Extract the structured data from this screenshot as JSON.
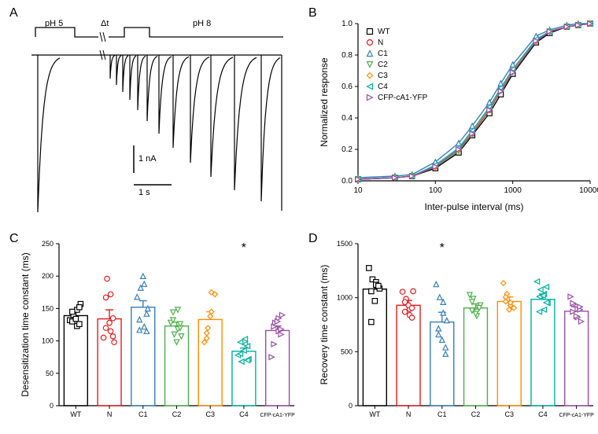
{
  "panelA": {
    "label": "A",
    "pH5_label": "pH 5",
    "dt_label": "Δt",
    "pH8_label": "pH 8",
    "scale_y_label": "1 nA",
    "scale_x_label": "1 s",
    "traces_envelope_x": [
      20,
      25,
      25,
      30,
      40,
      55,
      75,
      95,
      115,
      135,
      155,
      180,
      210,
      245,
      285,
      330
    ],
    "traces_peak_heights": [
      200,
      30,
      40,
      50,
      62,
      75,
      90,
      105,
      120,
      135,
      150,
      162,
      172,
      180,
      188,
      198
    ],
    "line_color": "#000000",
    "background": "#ffffff"
  },
  "panelB": {
    "label": "B",
    "xlabel": "Inter-pulse interval (ms)",
    "ylabel": "Normalized response",
    "xlim": [
      10,
      10000
    ],
    "ylim": [
      0,
      1.0
    ],
    "xticks": [
      10,
      100,
      1000,
      10000
    ],
    "yticks": [
      0.0,
      0.2,
      0.4,
      0.6,
      0.8,
      1.0
    ],
    "x_points": [
      10,
      30,
      50,
      100,
      200,
      300,
      500,
      700,
      1000,
      2000,
      3000,
      5000,
      7000,
      10000
    ],
    "series": [
      {
        "name": "WT",
        "color": "#000000",
        "marker": "square",
        "values": [
          0.01,
          0.02,
          0.03,
          0.08,
          0.18,
          0.29,
          0.43,
          0.55,
          0.68,
          0.88,
          0.94,
          0.98,
          0.99,
          1.0
        ]
      },
      {
        "name": "N",
        "color": "#e41a1c",
        "marker": "circle",
        "values": [
          0.01,
          0.02,
          0.03,
          0.09,
          0.2,
          0.3,
          0.45,
          0.58,
          0.7,
          0.89,
          0.95,
          0.98,
          0.99,
          1.0
        ]
      },
      {
        "name": "C1",
        "color": "#377eb8",
        "marker": "triangle-up",
        "values": [
          0.02,
          0.03,
          0.04,
          0.12,
          0.24,
          0.35,
          0.5,
          0.62,
          0.74,
          0.92,
          0.96,
          0.99,
          1.0,
          1.0
        ]
      },
      {
        "name": "C2",
        "color": "#4daf4a",
        "marker": "triangle-down",
        "values": [
          0.01,
          0.02,
          0.03,
          0.09,
          0.19,
          0.3,
          0.45,
          0.57,
          0.69,
          0.89,
          0.95,
          0.98,
          0.99,
          1.0
        ]
      },
      {
        "name": "C3",
        "color": "#ff8c00",
        "marker": "diamond",
        "values": [
          0.01,
          0.02,
          0.03,
          0.09,
          0.2,
          0.31,
          0.46,
          0.58,
          0.7,
          0.89,
          0.95,
          0.98,
          0.99,
          1.0
        ]
      },
      {
        "name": "C4",
        "color": "#00b0a0",
        "marker": "triangle-left",
        "values": [
          0.01,
          0.02,
          0.03,
          0.1,
          0.21,
          0.32,
          0.47,
          0.59,
          0.71,
          0.9,
          0.95,
          0.98,
          0.99,
          1.0
        ]
      },
      {
        "name": "CFP-cA1-YFP",
        "color": "#984ea3",
        "marker": "triangle-right",
        "values": [
          0.01,
          0.02,
          0.03,
          0.09,
          0.2,
          0.3,
          0.45,
          0.57,
          0.69,
          0.89,
          0.95,
          0.98,
          0.99,
          1.0
        ]
      }
    ],
    "legend_fontsize": 10,
    "label_fontsize": 12,
    "tick_fontsize": 10,
    "background": "#ffffff"
  },
  "panelC": {
    "label": "C",
    "ylabel": "Desensitization time constant (ms)",
    "ylim": [
      0,
      250
    ],
    "yticks": [
      0,
      50,
      100,
      150,
      200,
      250
    ],
    "categories": [
      "WT",
      "N",
      "C1",
      "C2",
      "C3",
      "C4",
      "CFP-cA1-YFP"
    ],
    "bar_means": [
      139,
      134,
      152,
      123,
      133,
      84,
      116
    ],
    "bar_sem": [
      7,
      14,
      10,
      6,
      12,
      5,
      7
    ],
    "colors": [
      "#000000",
      "#e41a1c",
      "#377eb8",
      "#4daf4a",
      "#ff8c00",
      "#00b0a0",
      "#984ea3"
    ],
    "markers": [
      "square",
      "circle",
      "triangle-up",
      "triangle-down",
      "diamond",
      "triangle-left",
      "triangle-right"
    ],
    "scatter": [
      [
        132,
        140,
        148,
        123,
        157,
        130,
        145,
        134,
        126,
        152
      ],
      [
        105,
        196,
        172,
        115,
        98,
        167,
        120,
        128,
        107,
        135
      ],
      [
        168,
        182,
        122,
        188,
        150,
        133,
        117,
        200,
        142,
        115
      ],
      [
        128,
        110,
        148,
        118,
        107,
        144,
        132,
        98,
        120,
        126
      ],
      [
        98,
        120,
        175,
        145,
        172,
        104,
        112,
        138
      ],
      [
        78,
        68,
        103,
        95,
        72,
        80,
        98,
        85,
        70,
        92
      ],
      [
        75,
        128,
        135,
        115,
        140,
        95,
        122,
        130,
        110,
        118
      ]
    ],
    "significance": {
      "index": 5,
      "label": "*"
    },
    "bar_width": 0.7,
    "label_fontsize": 12,
    "tick_fontsize": 9,
    "background": "#ffffff"
  },
  "panelD": {
    "label": "D",
    "ylabel": "Recovery time constant (ms)",
    "ylim": [
      0,
      1500
    ],
    "yticks": [
      0,
      500,
      1000,
      1500
    ],
    "categories": [
      "WT",
      "N",
      "C1",
      "C2",
      "C3",
      "C4",
      "CFP-cA1-YFP"
    ],
    "bar_means": [
      1080,
      930,
      775,
      905,
      965,
      985,
      875
    ],
    "bar_sem": [
      70,
      45,
      90,
      38,
      42,
      50,
      40
    ],
    "colors": [
      "#000000",
      "#e41a1c",
      "#377eb8",
      "#4daf4a",
      "#ff8c00",
      "#00b0a0",
      "#984ea3"
    ],
    "markers": [
      "square",
      "circle",
      "triangle-up",
      "triangle-down",
      "diamond",
      "triangle-left",
      "triangle-right"
    ],
    "scatter": [
      [
        1275,
        1170,
        1145,
        1120,
        1085,
        1060,
        775,
        970,
        1110
      ],
      [
        1055,
        990,
        895,
        840,
        1060,
        960,
        870,
        930,
        905,
        815
      ],
      [
        1125,
        1005,
        960,
        860,
        790,
        715,
        660,
        610,
        540,
        480
      ],
      [
        1025,
        990,
        870,
        830,
        930,
        960,
        880,
        850,
        905
      ],
      [
        1135,
        1035,
        930,
        955,
        905,
        1005,
        965,
        890
      ],
      [
        1150,
        1075,
        1035,
        890,
        950,
        870,
        1010,
        1020,
        955,
        1100
      ],
      [
        1010,
        940,
        820,
        895,
        780,
        870,
        950,
        830,
        890,
        915
      ]
    ],
    "significance": {
      "index": 2,
      "label": "*"
    },
    "bar_width": 0.7,
    "label_fontsize": 12,
    "tick_fontsize": 9,
    "background": "#ffffff"
  }
}
